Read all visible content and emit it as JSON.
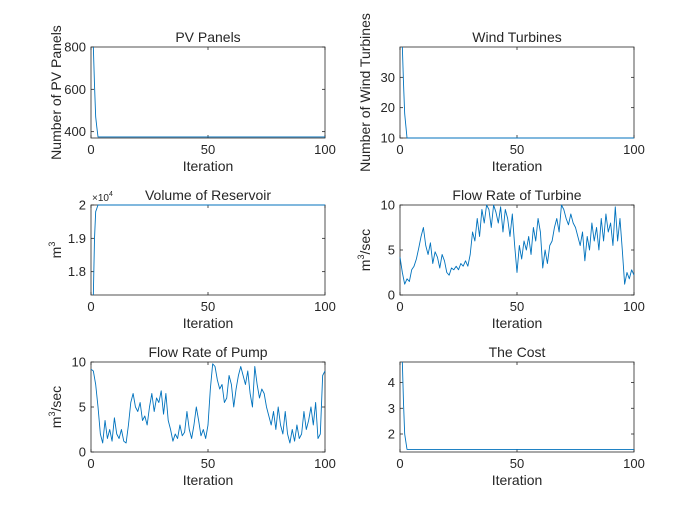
{
  "figure": {
    "line_color": "#0072BD",
    "axis_color": "#262626"
  },
  "chart_data": [
    {
      "type": "line",
      "title": "PV Panels",
      "xlabel": "Iteration",
      "ylabel": "Number of PV Panels",
      "xlim": [
        0,
        100
      ],
      "ylim": [
        370,
        800
      ],
      "xticks": [
        0,
        50,
        100
      ],
      "yticks": [
        400,
        600,
        800
      ],
      "ytick_labels": [
        "400",
        "600",
        "800"
      ],
      "x": [
        1,
        1.5,
        2,
        2.5,
        3,
        4,
        100
      ],
      "y": [
        800,
        620,
        470,
        420,
        375,
        375,
        375
      ]
    },
    {
      "type": "line",
      "title": "Wind Turbines",
      "xlabel": "Iteration",
      "ylabel": "Number of Wind Turbines",
      "xlim": [
        0,
        100
      ],
      "ylim": [
        10,
        40
      ],
      "xticks": [
        0,
        50,
        100
      ],
      "yticks": [
        10,
        20,
        30
      ],
      "ytick_labels": [
        "10",
        "20",
        "30"
      ],
      "x": [
        1,
        1.5,
        2,
        3,
        100
      ],
      "y": [
        40,
        28,
        18,
        10,
        10
      ]
    },
    {
      "type": "line",
      "title": "Volume of Reservoir",
      "xlabel": "Iteration",
      "ylabel": "m3",
      "ylabel_base": "m",
      "ylabel_sup": "3",
      "exponent_label": "×10",
      "exponent_power": "4",
      "xlim": [
        0,
        100
      ],
      "ylim": [
        17300,
        20000
      ],
      "xticks": [
        0,
        50,
        100
      ],
      "yticks": [
        18000,
        19000,
        20000
      ],
      "ytick_labels": [
        "1.8",
        "1.9",
        "2"
      ],
      "x": [
        1,
        1.5,
        2,
        3,
        100
      ],
      "y": [
        17300,
        19000,
        19800,
        20000,
        20000
      ]
    },
    {
      "type": "line",
      "title": "Flow Rate of Turbine",
      "xlabel": "Iteration",
      "ylabel": "m3/sec",
      "ylabel_base": "m",
      "ylabel_sup": "3",
      "ylabel_rest": "/sec",
      "xlim": [
        0,
        100
      ],
      "ylim": [
        0,
        10
      ],
      "xticks": [
        0,
        50,
        100
      ],
      "yticks": [
        0,
        5,
        10
      ],
      "ytick_labels": [
        "0",
        "5",
        "10"
      ],
      "x": [
        0,
        1,
        2,
        3,
        4,
        5,
        6,
        7,
        8,
        9,
        10,
        11,
        12,
        13,
        14,
        15,
        16,
        17,
        18,
        19,
        20,
        21,
        22,
        23,
        24,
        25,
        26,
        27,
        28,
        29,
        30,
        31,
        32,
        33,
        34,
        35,
        36,
        37,
        38,
        39,
        40,
        41,
        42,
        43,
        44,
        45,
        46,
        47,
        48,
        49,
        50,
        51,
        52,
        53,
        54,
        55,
        56,
        57,
        58,
        59,
        60,
        61,
        62,
        63,
        64,
        65,
        66,
        67,
        68,
        69,
        70,
        71,
        72,
        73,
        74,
        75,
        76,
        77,
        78,
        79,
        80,
        81,
        82,
        83,
        84,
        85,
        86,
        87,
        88,
        89,
        90,
        91,
        92,
        93,
        94,
        95,
        96,
        97,
        98,
        99,
        100
      ],
      "y": [
        4.2,
        2.5,
        1.2,
        1.8,
        1.5,
        2.8,
        3.2,
        4.0,
        5.2,
        6.5,
        7.5,
        5.5,
        4.5,
        5.8,
        3.5,
        4.8,
        4.2,
        3.0,
        4.5,
        3.8,
        2.5,
        2.2,
        3.0,
        2.8,
        3.2,
        2.8,
        3.5,
        3.2,
        3.8,
        3.2,
        4.5,
        7.0,
        6.0,
        8.5,
        6.5,
        9.5,
        8.0,
        10.0,
        9.5,
        7.5,
        10.0,
        9.2,
        8.0,
        9.8,
        7.0,
        9.5,
        8.5,
        6.5,
        9.0,
        5.5,
        2.5,
        5.5,
        4.0,
        6.0,
        5.0,
        6.5,
        4.5,
        7.5,
        6.0,
        8.5,
        7.0,
        3.0,
        5.0,
        3.5,
        5.5,
        6.0,
        7.5,
        8.5,
        7.0,
        10.0,
        9.5,
        8.5,
        7.8,
        9.0,
        8.0,
        7.5,
        6.5,
        5.5,
        7.0,
        3.8,
        6.5,
        5.0,
        8.0,
        6.0,
        7.5,
        5.0,
        8.5,
        6.0,
        9.0,
        7.0,
        8.0,
        5.5,
        9.8,
        6.0,
        8.5,
        5.0,
        1.2,
        2.5,
        1.8,
        2.8,
        2.2
      ]
    },
    {
      "type": "line",
      "title": "Flow Rate of Pump",
      "xlabel": "Iteration",
      "ylabel": "m3/sec",
      "ylabel_base": "m",
      "ylabel_sup": "3",
      "ylabel_rest": "/sec",
      "xlim": [
        0,
        100
      ],
      "ylim": [
        0,
        10
      ],
      "xticks": [
        0,
        50,
        100
      ],
      "yticks": [
        0,
        5,
        10
      ],
      "ytick_labels": [
        "0",
        "5",
        "10"
      ],
      "x": [
        0,
        1,
        2,
        3,
        4,
        5,
        6,
        7,
        8,
        9,
        10,
        11,
        12,
        13,
        14,
        15,
        16,
        17,
        18,
        19,
        20,
        21,
        22,
        23,
        24,
        25,
        26,
        27,
        28,
        29,
        30,
        31,
        32,
        33,
        34,
        35,
        36,
        37,
        38,
        39,
        40,
        41,
        42,
        43,
        44,
        45,
        46,
        47,
        48,
        49,
        50,
        51,
        52,
        53,
        54,
        55,
        56,
        57,
        58,
        59,
        60,
        61,
        62,
        63,
        64,
        65,
        66,
        67,
        68,
        69,
        70,
        71,
        72,
        73,
        74,
        75,
        76,
        77,
        78,
        79,
        80,
        81,
        82,
        83,
        84,
        85,
        86,
        87,
        88,
        89,
        90,
        91,
        92,
        93,
        94,
        95,
        96,
        97,
        98,
        99,
        100
      ],
      "y": [
        9.2,
        9.0,
        7.5,
        5.0,
        2.0,
        1.0,
        3.5,
        1.5,
        2.5,
        1.2,
        3.8,
        2.0,
        1.5,
        2.5,
        1.2,
        1.0,
        3.0,
        5.5,
        6.5,
        5.0,
        4.5,
        5.5,
        3.5,
        4.0,
        3.0,
        5.0,
        6.5,
        4.5,
        6.0,
        5.5,
        6.8,
        4.2,
        6.5,
        3.5,
        2.5,
        1.2,
        2.0,
        1.5,
        3.0,
        1.8,
        2.2,
        4.5,
        2.5,
        1.5,
        3.0,
        5.0,
        3.5,
        1.8,
        2.5,
        1.5,
        3.0,
        7.0,
        9.8,
        9.5,
        8.0,
        7.0,
        7.5,
        5.5,
        6.0,
        8.5,
        7.5,
        5.0,
        7.0,
        8.5,
        9.5,
        8.5,
        7.5,
        9.0,
        6.5,
        5.0,
        9.5,
        7.5,
        6.0,
        7.0,
        6.5,
        5.0,
        4.0,
        3.0,
        4.5,
        2.5,
        5.0,
        3.0,
        2.0,
        4.5,
        2.0,
        1.0,
        2.5,
        1.2,
        3.0,
        1.5,
        2.0,
        4.5,
        2.5,
        3.5,
        5.0,
        3.0,
        5.5,
        1.5,
        2.0,
        8.5,
        9.0
      ]
    },
    {
      "type": "line",
      "title": "The Cost",
      "xlabel": "Iteration",
      "ylabel": "",
      "xlim": [
        0,
        100
      ],
      "ylim": [
        1.3,
        4.8
      ],
      "xticks": [
        0,
        50,
        100
      ],
      "yticks": [
        2,
        3,
        4
      ],
      "ytick_labels": [
        "2",
        "3",
        "4"
      ],
      "x": [
        1,
        1.5,
        2,
        3,
        100
      ],
      "y": [
        4.8,
        3.2,
        2.0,
        1.4,
        1.4
      ]
    }
  ]
}
